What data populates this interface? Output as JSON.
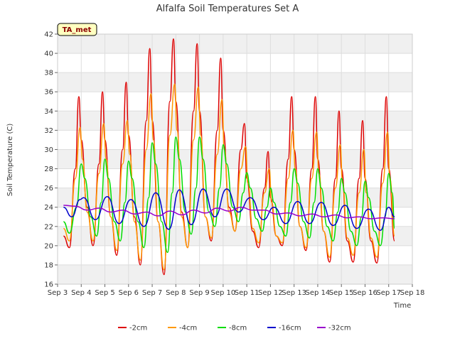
{
  "chart_data": {
    "type": "line",
    "title": "Alfalfa Soil Temperatures Set A",
    "xlabel": "Time",
    "ylabel": "Soil Temperature (C)",
    "badge": "TA_met",
    "ylim": [
      16,
      42
    ],
    "yticks": [
      16,
      18,
      20,
      22,
      24,
      26,
      28,
      30,
      32,
      34,
      36,
      38,
      40,
      42
    ],
    "xlim": [
      3,
      18
    ],
    "xticks": [
      {
        "value": 3,
        "label": "Sep 3"
      },
      {
        "value": 4,
        "label": "Sep 4"
      },
      {
        "value": 5,
        "label": "Sep 5"
      },
      {
        "value": 6,
        "label": "Sep 6"
      },
      {
        "value": 7,
        "label": "Sep 7"
      },
      {
        "value": 8,
        "label": "Sep 8"
      },
      {
        "value": 9,
        "label": "Sep 9"
      },
      {
        "value": 10,
        "label": "Sep 10"
      },
      {
        "value": 11,
        "label": "Sep 11"
      },
      {
        "value": 12,
        "label": "Sep 12"
      },
      {
        "value": 13,
        "label": "Sep 13"
      },
      {
        "value": 14,
        "label": "Sep 14"
      },
      {
        "value": 15,
        "label": "Sep 15"
      },
      {
        "value": 16,
        "label": "Sep 16"
      },
      {
        "value": 17,
        "label": "Sep 17"
      },
      {
        "value": 18,
        "label": "Sep 18"
      }
    ],
    "grid": true,
    "legend_position": "bottom",
    "series": [
      {
        "name": "-2cm",
        "color": "#dd0000",
        "x": [
          3.25,
          3.5,
          3.75,
          3.9,
          4.0,
          4.25,
          4.5,
          4.75,
          4.9,
          5.0,
          5.25,
          5.5,
          5.75,
          5.9,
          6.0,
          6.25,
          6.5,
          6.75,
          6.9,
          7.0,
          7.25,
          7.5,
          7.75,
          7.9,
          8.0,
          8.25,
          8.5,
          8.75,
          8.9,
          9.0,
          9.25,
          9.5,
          9.75,
          9.9,
          10.0,
          10.25,
          10.5,
          10.75,
          10.9,
          11.0,
          11.25,
          11.5,
          11.75,
          11.9,
          12.0,
          12.25,
          12.5,
          12.75,
          12.9,
          13.0,
          13.25,
          13.5,
          13.75,
          13.9,
          14.0,
          14.25,
          14.5,
          14.75,
          14.9,
          15.0,
          15.25,
          15.5,
          15.75,
          15.9,
          16.0,
          16.25,
          16.5,
          16.75,
          16.9,
          17.0,
          17.25
        ],
        "y": [
          21.0,
          19.8,
          28.0,
          35.5,
          31.0,
          24.0,
          20.0,
          28.5,
          36.0,
          31.0,
          23.0,
          19.0,
          30.0,
          37.0,
          31.5,
          23.0,
          18.0,
          33.0,
          40.5,
          33.0,
          22.5,
          17.0,
          35.0,
          41.5,
          35.0,
          23.5,
          19.8,
          34.0,
          41.0,
          34.0,
          23.0,
          20.5,
          32.0,
          39.5,
          32.0,
          24.0,
          21.5,
          30.0,
          32.7,
          27.0,
          21.5,
          19.8,
          26.0,
          29.8,
          25.0,
          21.0,
          20.0,
          29.0,
          35.5,
          30.0,
          22.0,
          19.5,
          28.0,
          35.5,
          29.0,
          21.5,
          18.3,
          27.0,
          34.0,
          28.0,
          20.5,
          18.3,
          27.0,
          33.0,
          27.0,
          20.5,
          18.2,
          28.0,
          35.5,
          28.0,
          20.5
        ]
      },
      {
        "name": "-4cm",
        "color": "#ff9900",
        "x": [
          3.25,
          3.5,
          3.75,
          3.95,
          4.05,
          4.25,
          4.5,
          4.75,
          4.95,
          5.05,
          5.25,
          5.5,
          5.75,
          5.95,
          6.05,
          6.25,
          6.5,
          6.75,
          6.95,
          7.05,
          7.25,
          7.5,
          7.75,
          7.95,
          8.05,
          8.25,
          8.5,
          8.75,
          8.95,
          9.05,
          9.25,
          9.5,
          9.75,
          9.95,
          10.05,
          10.25,
          10.5,
          10.75,
          10.95,
          11.05,
          11.25,
          11.5,
          11.75,
          11.95,
          12.05,
          12.25,
          12.5,
          12.75,
          12.95,
          13.05,
          13.25,
          13.5,
          13.75,
          13.95,
          14.05,
          14.25,
          14.5,
          14.75,
          14.95,
          15.05,
          15.25,
          15.5,
          15.75,
          15.95,
          16.05,
          16.25,
          16.5,
          16.75,
          16.95,
          17.05,
          17.25
        ],
        "y": [
          21.8,
          20.5,
          27.0,
          32.3,
          29.0,
          23.5,
          20.5,
          27.5,
          32.7,
          29.0,
          23.0,
          19.5,
          28.5,
          33.0,
          29.5,
          22.5,
          18.5,
          30.0,
          35.8,
          31.0,
          22.5,
          17.5,
          31.5,
          36.8,
          32.0,
          23.0,
          19.8,
          31.0,
          36.5,
          31.5,
          23.0,
          20.8,
          29.5,
          35.2,
          30.0,
          23.5,
          21.5,
          28.0,
          30.3,
          26.5,
          21.8,
          20.3,
          25.5,
          28.0,
          24.5,
          21.0,
          20.3,
          27.0,
          32.0,
          28.0,
          22.0,
          19.8,
          27.0,
          31.8,
          27.5,
          21.5,
          18.8,
          26.0,
          30.5,
          26.5,
          20.8,
          19.0,
          25.5,
          30.0,
          25.5,
          20.8,
          18.8,
          26.5,
          31.8,
          27.0,
          21.0
        ]
      },
      {
        "name": "-8cm",
        "color": "#00dd00",
        "x": [
          3.25,
          3.5,
          3.8,
          4.0,
          4.15,
          4.4,
          4.65,
          4.85,
          5.0,
          5.15,
          5.4,
          5.65,
          5.85,
          6.0,
          6.15,
          6.4,
          6.65,
          6.85,
          7.0,
          7.15,
          7.4,
          7.65,
          7.85,
          8.0,
          8.15,
          8.4,
          8.65,
          8.85,
          9.0,
          9.15,
          9.4,
          9.65,
          9.85,
          10.0,
          10.15,
          10.4,
          10.65,
          10.85,
          11.0,
          11.15,
          11.4,
          11.65,
          11.85,
          12.0,
          12.15,
          12.4,
          12.65,
          12.85,
          13.0,
          13.15,
          13.4,
          13.65,
          13.85,
          14.0,
          14.15,
          14.4,
          14.65,
          14.85,
          15.0,
          15.15,
          15.4,
          15.65,
          15.85,
          16.0,
          16.15,
          16.4,
          16.65,
          16.85,
          17.0,
          17.15,
          17.25
        ],
        "y": [
          22.5,
          21.3,
          24.0,
          28.5,
          27.0,
          23.0,
          21.0,
          24.5,
          29.0,
          27.0,
          22.5,
          20.5,
          24.5,
          28.8,
          27.0,
          22.5,
          19.8,
          25.0,
          30.7,
          28.5,
          22.5,
          19.3,
          25.5,
          31.3,
          29.0,
          23.5,
          21.2,
          26.0,
          31.3,
          29.0,
          23.5,
          22.0,
          26.0,
          30.5,
          28.5,
          24.0,
          22.5,
          25.5,
          27.6,
          26.0,
          22.8,
          21.5,
          24.0,
          26.0,
          24.5,
          22.0,
          21.0,
          24.5,
          28.0,
          26.5,
          22.5,
          20.8,
          24.5,
          28.0,
          26.0,
          22.0,
          20.5,
          23.5,
          27.0,
          25.5,
          21.5,
          20.0,
          23.0,
          26.7,
          25.0,
          21.5,
          20.0,
          23.0,
          27.5,
          25.5,
          21.8
        ]
      },
      {
        "name": "-16cm",
        "color": "#0000cc",
        "x": [
          3.25,
          3.6,
          3.95,
          4.1,
          4.6,
          5.1,
          5.6,
          6.1,
          6.65,
          7.15,
          7.7,
          8.15,
          8.65,
          9.15,
          9.65,
          10.15,
          10.65,
          11.15,
          11.7,
          12.15,
          12.65,
          13.15,
          13.65,
          14.15,
          14.65,
          15.15,
          15.65,
          16.15,
          16.65,
          17.0,
          17.25
        ],
        "y": [
          24.0,
          23.0,
          24.8,
          25.0,
          22.7,
          25.1,
          22.3,
          24.8,
          22.0,
          25.5,
          21.7,
          25.8,
          22.2,
          25.9,
          23.0,
          25.9,
          23.5,
          25.0,
          22.7,
          24.0,
          22.3,
          24.6,
          22.3,
          24.5,
          22.1,
          24.2,
          21.8,
          23.8,
          21.6,
          24.0,
          23.0
        ]
      },
      {
        "name": "-32cm",
        "color": "#9900cc",
        "x": [
          3.25,
          3.75,
          4.25,
          4.75,
          5.25,
          5.75,
          6.25,
          6.75,
          7.25,
          7.75,
          8.25,
          8.75,
          9.25,
          9.75,
          10.25,
          10.75,
          11.25,
          11.75,
          12.25,
          12.75,
          13.25,
          13.75,
          14.25,
          14.75,
          15.25,
          15.75,
          16.25,
          16.75,
          17.25
        ],
        "y": [
          24.2,
          24.1,
          23.7,
          23.9,
          23.5,
          23.7,
          23.3,
          23.5,
          23.1,
          23.6,
          23.2,
          23.7,
          23.4,
          23.9,
          23.6,
          24.0,
          23.7,
          23.7,
          23.3,
          23.4,
          23.1,
          23.3,
          23.0,
          23.2,
          22.9,
          23.0,
          22.8,
          22.9,
          22.8
        ]
      }
    ]
  }
}
